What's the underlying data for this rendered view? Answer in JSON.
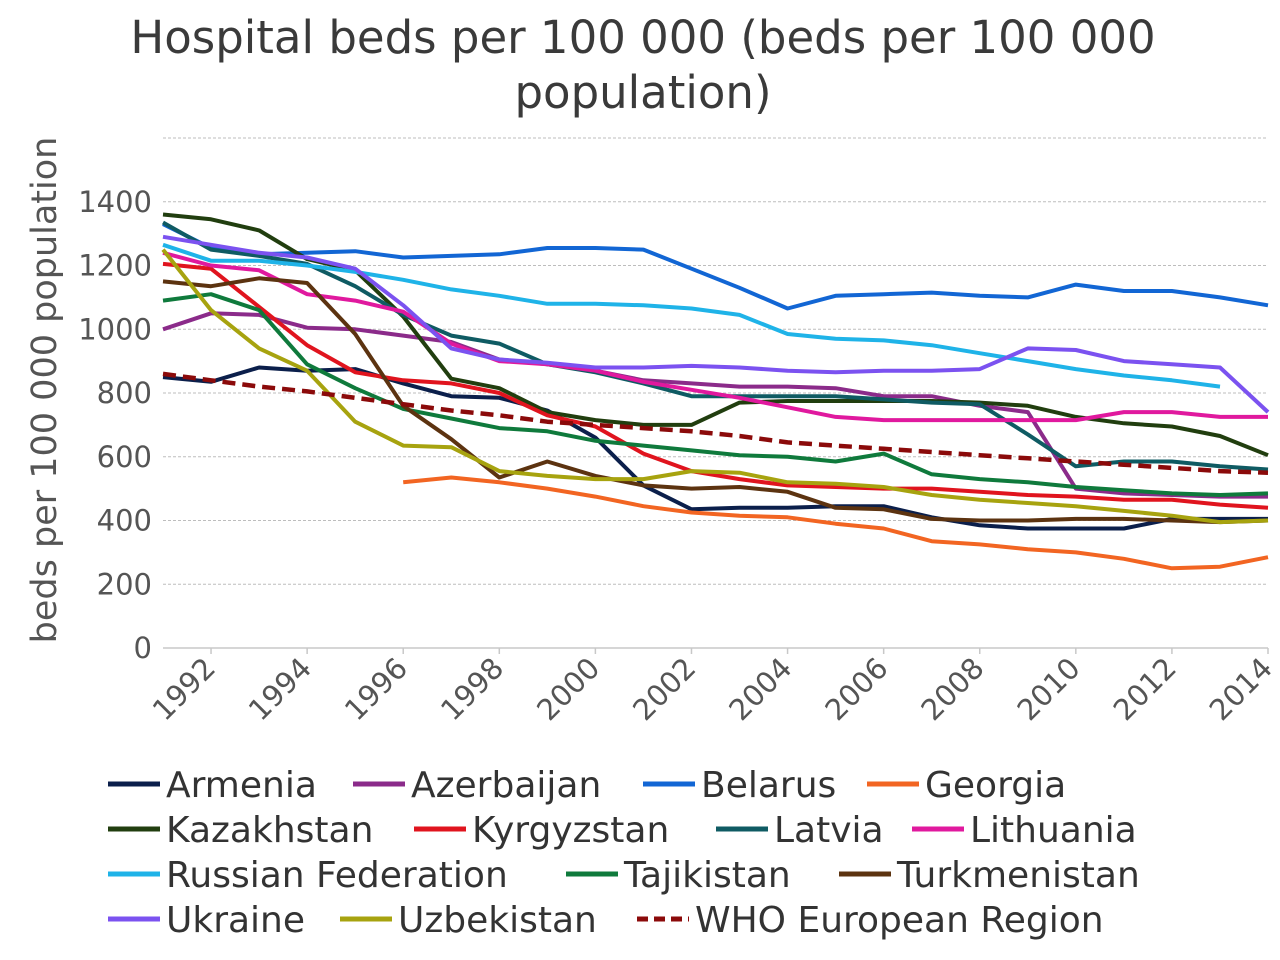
{
  "chart_data": {
    "type": "line",
    "title_lines": [
      "Hospital beds per 100 000 (beds per 100 000",
      "population)"
    ],
    "ylabel": "beds per 100 000 population",
    "xlabel": "",
    "ylim": [
      0,
      1600
    ],
    "yticks": [
      0,
      200,
      400,
      600,
      800,
      1000,
      1200,
      1400
    ],
    "xlim": [
      1991,
      2014
    ],
    "xticks": [
      1992,
      1994,
      1996,
      1998,
      2000,
      2002,
      2004,
      2006,
      2008,
      2010,
      2012,
      2014
    ],
    "gridlines": [
      200,
      400,
      600,
      800,
      1000,
      1200,
      1400,
      1600
    ],
    "legend_position": "bottom",
    "series": [
      {
        "name": "Armenia",
        "color": "#0b1f4b",
        "dashed": false,
        "x": [
          1991,
          1992,
          1993,
          1994,
          1995,
          1996,
          1997,
          1998,
          1999,
          2000,
          2001,
          2002,
          2003,
          2004,
          2005,
          2006,
          2007,
          2008,
          2009,
          2010,
          2011,
          2012,
          2013,
          2014
        ],
        "y": [
          850,
          835,
          880,
          870,
          875,
          830,
          790,
          785,
          745,
          660,
          510,
          435,
          440,
          440,
          445,
          445,
          410,
          385,
          375,
          375,
          375,
          405,
          405,
          405
        ]
      },
      {
        "name": "Azerbaijan",
        "color": "#8b2b8a",
        "dashed": false,
        "x": [
          1991,
          1992,
          1993,
          1994,
          1995,
          1996,
          1997,
          1998,
          1999,
          2000,
          2001,
          2002,
          2003,
          2004,
          2005,
          2006,
          2007,
          2008,
          2009,
          2010,
          2011,
          2012,
          2013,
          2014
        ],
        "y": [
          1000,
          1050,
          1045,
          1005,
          1000,
          980,
          960,
          905,
          890,
          870,
          840,
          830,
          820,
          820,
          815,
          790,
          790,
          760,
          740,
          500,
          485,
          480,
          475,
          475
        ]
      },
      {
        "name": "Belarus",
        "color": "#1266d4",
        "dashed": false,
        "x": [
          1991,
          1992,
          1993,
          1994,
          1995,
          1996,
          1997,
          1998,
          1999,
          2000,
          2001,
          2002,
          2003,
          2004,
          2005,
          2006,
          2007,
          2008,
          2009,
          2010,
          2011,
          2012,
          2013,
          2014
        ],
        "y": [
          1330,
          1255,
          1235,
          1240,
          1245,
          1225,
          1230,
          1235,
          1255,
          1255,
          1250,
          1190,
          1130,
          1065,
          1105,
          1110,
          1115,
          1105,
          1100,
          1140,
          1120,
          1120,
          1100,
          1075
        ]
      },
      {
        "name": "Georgia",
        "color": "#f26522",
        "dashed": false,
        "x": [
          1996,
          1997,
          1998,
          1999,
          2000,
          2001,
          2002,
          2003,
          2004,
          2005,
          2006,
          2007,
          2008,
          2009,
          2010,
          2011,
          2012,
          2013,
          2014
        ],
        "y": [
          520,
          535,
          520,
          500,
          475,
          445,
          425,
          415,
          410,
          390,
          375,
          335,
          325,
          310,
          300,
          280,
          250,
          255,
          285
        ]
      },
      {
        "name": "Kazakhstan",
        "color": "#213e0f",
        "dashed": false,
        "x": [
          1991,
          1992,
          1993,
          1994,
          1995,
          1996,
          1997,
          1998,
          1999,
          2000,
          2001,
          2002,
          2003,
          2004,
          2005,
          2006,
          2007,
          2008,
          2009,
          2010,
          2011,
          2012,
          2013,
          2014
        ],
        "y": [
          1360,
          1345,
          1310,
          1220,
          1185,
          1040,
          845,
          815,
          740,
          715,
          700,
          700,
          770,
          775,
          775,
          775,
          775,
          770,
          760,
          725,
          705,
          695,
          665,
          605
        ]
      },
      {
        "name": "Kyrgyzstan",
        "color": "#e0141e",
        "dashed": false,
        "x": [
          1991,
          1992,
          1993,
          1994,
          1995,
          1996,
          1997,
          1998,
          1999,
          2000,
          2001,
          2002,
          2003,
          2004,
          2005,
          2006,
          2007,
          2008,
          2009,
          2010,
          2011,
          2012,
          2013,
          2014
        ],
        "y": [
          1205,
          1190,
          1070,
          950,
          865,
          840,
          830,
          800,
          730,
          695,
          610,
          555,
          530,
          510,
          505,
          500,
          500,
          490,
          480,
          475,
          465,
          465,
          450,
          440
        ]
      },
      {
        "name": "Latvia",
        "color": "#0f5b63",
        "dashed": false,
        "x": [
          1991,
          1992,
          1993,
          1994,
          1995,
          1996,
          1997,
          1998,
          1999,
          2000,
          2001,
          2002,
          2003,
          2004,
          2005,
          2006,
          2007,
          2008,
          2009,
          2010,
          2011,
          2012,
          2013,
          2014
        ],
        "y": [
          1335,
          1250,
          1230,
          1205,
          1135,
          1045,
          980,
          955,
          890,
          865,
          830,
          790,
          790,
          790,
          790,
          780,
          770,
          765,
          670,
          570,
          585,
          585,
          570,
          560
        ]
      },
      {
        "name": "Lithuania",
        "color": "#e0199e",
        "dashed": false,
        "x": [
          1991,
          1992,
          1993,
          1994,
          1995,
          1996,
          1997,
          1998,
          1999,
          2000,
          2001,
          2002,
          2003,
          2004,
          2005,
          2006,
          2007,
          2008,
          2009,
          2010,
          2011,
          2012,
          2013,
          2014
        ],
        "y": [
          1240,
          1200,
          1185,
          1110,
          1090,
          1055,
          955,
          900,
          890,
          870,
          835,
          810,
          785,
          755,
          725,
          715,
          715,
          715,
          715,
          715,
          740,
          740,
          725,
          725
        ]
      },
      {
        "name": "Russian Federation",
        "color": "#1fb3e8",
        "dashed": false,
        "x": [
          1991,
          1992,
          1993,
          1994,
          1995,
          1996,
          1997,
          1998,
          1999,
          2000,
          2001,
          2002,
          2003,
          2004,
          2005,
          2006,
          2007,
          2008,
          2009,
          2010,
          2011,
          2012,
          2013
        ],
        "y": [
          1265,
          1215,
          1215,
          1200,
          1180,
          1155,
          1125,
          1105,
          1080,
          1080,
          1075,
          1065,
          1045,
          985,
          970,
          965,
          950,
          925,
          900,
          875,
          855,
          840,
          820
        ]
      },
      {
        "name": "Tajikistan",
        "color": "#0f7a3c",
        "dashed": false,
        "x": [
          1991,
          1992,
          1993,
          1994,
          1995,
          1996,
          1997,
          1998,
          1999,
          2000,
          2001,
          2002,
          2003,
          2004,
          2005,
          2006,
          2007,
          2008,
          2009,
          2010,
          2011,
          2012,
          2013,
          2014
        ],
        "y": [
          1090,
          1110,
          1060,
          890,
          815,
          750,
          720,
          690,
          680,
          650,
          635,
          620,
          605,
          600,
          585,
          610,
          545,
          530,
          520,
          505,
          495,
          485,
          480,
          485
        ]
      },
      {
        "name": "Turkmenistan",
        "color": "#5c3310",
        "dashed": false,
        "x": [
          1991,
          1992,
          1993,
          1994,
          1995,
          1996,
          1997,
          1998,
          1999,
          2000,
          2001,
          2002,
          2003,
          2004,
          2005,
          2006,
          2007,
          2008,
          2009,
          2010,
          2011,
          2012,
          2013,
          2014
        ],
        "y": [
          1150,
          1135,
          1160,
          1145,
          985,
          760,
          655,
          535,
          585,
          540,
          510,
          500,
          505,
          490,
          440,
          435,
          405,
          400,
          400,
          405,
          405,
          400,
          395,
          400
        ]
      },
      {
        "name": "Ukraine",
        "color": "#7b52f0",
        "dashed": false,
        "x": [
          1991,
          1992,
          1993,
          1994,
          1995,
          1996,
          1997,
          1998,
          1999,
          2000,
          2001,
          2002,
          2003,
          2004,
          2005,
          2006,
          2007,
          2008,
          2009,
          2010,
          2011,
          2012,
          2013,
          2014
        ],
        "y": [
          1290,
          1265,
          1240,
          1225,
          1190,
          1075,
          940,
          905,
          895,
          880,
          880,
          885,
          880,
          870,
          865,
          870,
          870,
          875,
          940,
          935,
          900,
          890,
          880,
          740
        ]
      },
      {
        "name": "Uzbekistan",
        "color": "#a7a30f",
        "dashed": false,
        "x": [
          1991,
          1992,
          1993,
          1994,
          1995,
          1996,
          1997,
          1998,
          1999,
          2000,
          2001,
          2002,
          2003,
          2004,
          2005,
          2006,
          2007,
          2008,
          2009,
          2010,
          2011,
          2012,
          2013,
          2014
        ],
        "y": [
          1250,
          1060,
          940,
          870,
          710,
          635,
          630,
          555,
          540,
          530,
          530,
          555,
          550,
          520,
          515,
          505,
          480,
          465,
          455,
          445,
          430,
          415,
          395,
          400
        ]
      },
      {
        "name": "WHO European Region",
        "color": "#8b0a0a",
        "dashed": true,
        "x": [
          1991,
          1992,
          1993,
          1994,
          1995,
          1996,
          1997,
          1998,
          1999,
          2000,
          2001,
          2002,
          2003,
          2004,
          2005,
          2006,
          2007,
          2008,
          2009,
          2010,
          2011,
          2012,
          2013,
          2014
        ],
        "y": [
          860,
          840,
          820,
          805,
          785,
          765,
          745,
          730,
          710,
          700,
          690,
          680,
          665,
          645,
          635,
          625,
          615,
          605,
          595,
          585,
          575,
          565,
          555,
          550
        ]
      }
    ]
  }
}
